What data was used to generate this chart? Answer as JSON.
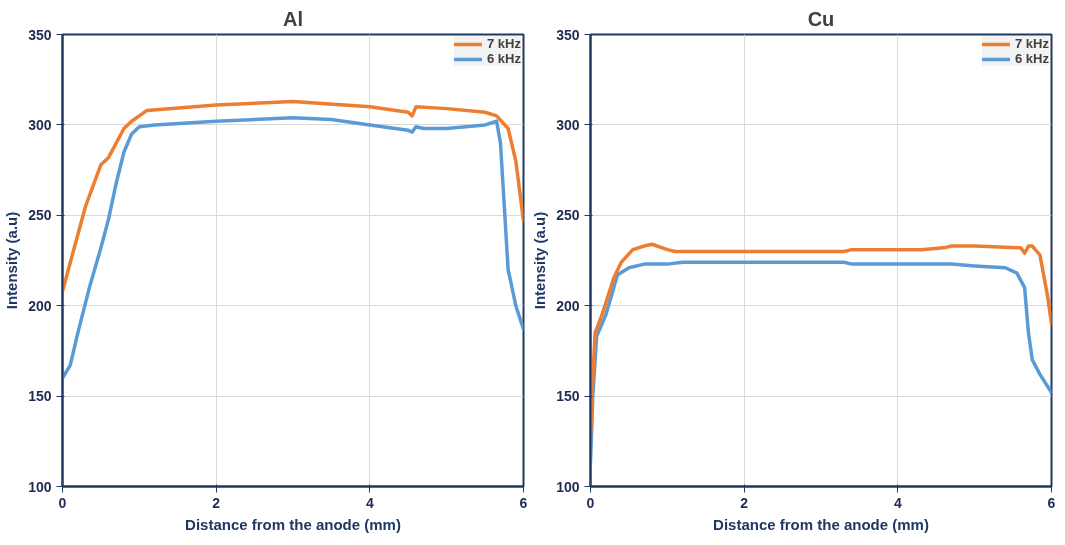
{
  "chart_data": [
    {
      "type": "line",
      "title": "Al",
      "xlabel": "Distance from the anode (mm)",
      "ylabel": "Intensity (a.u)",
      "xlim": [
        0,
        6
      ],
      "xticks": [
        0,
        2,
        4,
        6
      ],
      "ylim": [
        100,
        350
      ],
      "yticks": [
        100,
        150,
        200,
        250,
        300,
        350
      ],
      "grid": true,
      "legend": "top right",
      "line_style": "solid",
      "marker": "none",
      "series": [
        {
          "name": "7 kHz",
          "color": "#ed7d31",
          "x": [
            0,
            0.3,
            0.5,
            0.6,
            0.8,
            0.9,
            1.1,
            2,
            3,
            4,
            4.5,
            4.55,
            4.6,
            5,
            5.5,
            5.65,
            5.8,
            5.9,
            6
          ],
          "values": [
            208,
            255,
            278,
            282,
            298,
            302,
            308,
            311,
            313,
            310,
            307,
            305,
            310,
            309,
            307,
            305,
            298,
            280,
            247
          ]
        },
        {
          "name": "6 kHz",
          "color": "#5b9bd5",
          "x": [
            0,
            0.1,
            0.2,
            0.35,
            0.5,
            0.6,
            0.7,
            0.8,
            0.9,
            1.0,
            1.2,
            2,
            3,
            3.5,
            4,
            4.5,
            4.55,
            4.6,
            4.7,
            5,
            5.5,
            5.65,
            5.7,
            5.75,
            5.8,
            5.9,
            6
          ],
          "values": [
            160,
            167,
            185,
            210,
            232,
            248,
            268,
            285,
            295,
            299,
            300,
            302,
            304,
            303,
            300,
            297,
            296,
            299,
            298,
            298,
            300,
            302,
            290,
            255,
            220,
            200,
            187
          ]
        }
      ]
    },
    {
      "type": "line",
      "title": "Cu",
      "xlabel": "Distance from the anode (mm)",
      "ylabel": "Intensity (a.u)",
      "xlim": [
        0,
        6
      ],
      "xticks": [
        0,
        2,
        4,
        6
      ],
      "ylim": [
        100,
        350
      ],
      "yticks": [
        100,
        150,
        200,
        250,
        300,
        350
      ],
      "grid": true,
      "legend": "top right",
      "line_style": "solid",
      "marker": "none",
      "series": [
        {
          "name": "7 kHz",
          "color": "#ed7d31",
          "x": [
            0,
            0.03,
            0.06,
            0.15,
            0.3,
            0.4,
            0.55,
            0.7,
            0.8,
            1,
            1.1,
            2,
            3.3,
            3.4,
            4.3,
            4.6,
            4.7,
            5,
            5.6,
            5.65,
            5.7,
            5.75,
            5.85,
            5.95,
            6
          ],
          "values": [
            128,
            160,
            185,
            195,
            215,
            224,
            231,
            233,
            234,
            231,
            230,
            230,
            230,
            231,
            231,
            232,
            233,
            233,
            232,
            229,
            233,
            233,
            228,
            205,
            190
          ]
        },
        {
          "name": "6 kHz",
          "color": "#5b9bd5",
          "x": [
            0,
            0.03,
            0.08,
            0.2,
            0.35,
            0.5,
            0.7,
            0.9,
            1.0,
            1.2,
            2,
            3.3,
            3.4,
            4.5,
            4.7,
            5,
            5.4,
            5.55,
            5.65,
            5.7,
            5.75,
            5.85,
            6
          ],
          "values": [
            113,
            150,
            183,
            195,
            217,
            221,
            223,
            223,
            223,
            224,
            224,
            224,
            223,
            223,
            223,
            222,
            221,
            218,
            210,
            185,
            170,
            162,
            152
          ]
        }
      ]
    }
  ]
}
